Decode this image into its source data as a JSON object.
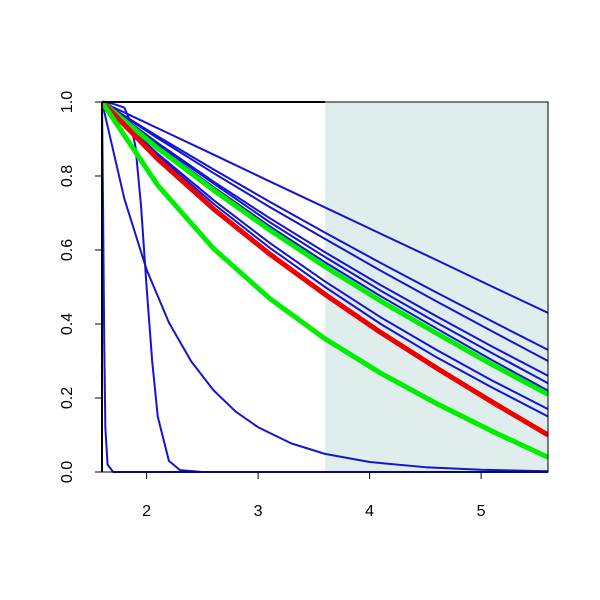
{
  "chart_data": {
    "type": "line",
    "xlim": [
      1.6,
      5.6
    ],
    "ylim": [
      0,
      1
    ],
    "xticks": [
      2,
      3,
      4,
      5
    ],
    "yticks": [
      {
        "value": 0,
        "label": "0.0"
      },
      {
        "value": 0.2,
        "label": "0.2"
      },
      {
        "value": 0.4,
        "label": "0.4"
      },
      {
        "value": 0.6,
        "label": "0.6"
      },
      {
        "value": 0.8,
        "label": "0.8"
      },
      {
        "value": 1,
        "label": "1.0"
      }
    ],
    "shade": {
      "xlim": [
        3.6,
        5.6
      ],
      "color": "#e0eded"
    },
    "series": [
      {
        "color": "#1414d2",
        "linewidth": 2,
        "x": [
          1.6,
          2.1,
          2.6,
          3.1,
          3.6,
          4.1,
          4.6,
          5.1,
          5.6
        ],
        "values": [
          1,
          0.929,
          0.858,
          0.786,
          0.715,
          0.644,
          0.573,
          0.501,
          0.43
        ]
      },
      {
        "color": "#1414d2",
        "linewidth": 2,
        "x": [
          1.6,
          2.1,
          2.6,
          3.1,
          3.6,
          4.1,
          4.6,
          5.1,
          5.6
        ],
        "values": [
          1,
          0.907,
          0.818,
          0.731,
          0.647,
          0.565,
          0.485,
          0.407,
          0.33
        ]
      },
      {
        "color": "#1414d2",
        "linewidth": 2,
        "x": [
          1.6,
          2.1,
          2.6,
          3.1,
          3.6,
          4.1,
          4.6,
          5.1,
          5.6
        ],
        "values": [
          1,
          0.902,
          0.808,
          0.717,
          0.63,
          0.544,
          0.461,
          0.38,
          0.3
        ]
      },
      {
        "color": "#1414d2",
        "linewidth": 2,
        "x": [
          1.6,
          2.1,
          2.6,
          3.1,
          3.6,
          4.1,
          4.6,
          5.1,
          5.6
        ],
        "values": [
          1,
          0.889,
          0.785,
          0.687,
          0.594,
          0.505,
          0.421,
          0.339,
          0.26
        ]
      },
      {
        "color": "#1414d2",
        "linewidth": 2,
        "x": [
          1.6,
          2.1,
          2.6,
          3.1,
          3.6,
          4.1,
          4.6,
          5.1,
          5.6
        ],
        "values": [
          1,
          0.885,
          0.78,
          0.676,
          0.581,
          0.49,
          0.404,
          0.321,
          0.24
        ]
      },
      {
        "color": "#1414d2",
        "linewidth": 2,
        "x": [
          1.6,
          2.1,
          2.6,
          3.1,
          3.6,
          4.1,
          4.6,
          5.1,
          5.6
        ],
        "values": [
          1,
          0.88,
          0.77,
          0.665,
          0.567,
          0.475,
          0.388,
          0.302,
          0.22
        ]
      },
      {
        "color": "#1414d2",
        "linewidth": 2,
        "x": [
          1.6,
          2.1,
          2.6,
          3.1,
          3.6,
          4.1,
          4.6,
          5.1,
          5.6
        ],
        "values": [
          1,
          0.86,
          0.735,
          0.62,
          0.515,
          0.418,
          0.33,
          0.247,
          0.17
        ]
      },
      {
        "color": "#1414d2",
        "linewidth": 2,
        "x": [
          1.6,
          2.1,
          2.6,
          3.1,
          3.6,
          4.1,
          4.6,
          5.1,
          5.6
        ],
        "values": [
          1,
          0.855,
          0.725,
          0.607,
          0.5,
          0.4,
          0.31,
          0.228,
          0.15
        ]
      },
      {
        "color": "#1414d2",
        "linewidth": 2,
        "x": [
          1.6,
          1.8,
          2.0,
          2.2,
          2.4,
          2.6,
          2.8,
          3.0,
          3.3,
          3.6,
          4.0,
          4.5,
          5.0,
          5.6
        ],
        "values": [
          1,
          0.739,
          0.547,
          0.404,
          0.299,
          0.221,
          0.163,
          0.121,
          0.077,
          0.049,
          0.027,
          0.013,
          0.006,
          0.002
        ]
      },
      {
        "color": "#1414d2",
        "linewidth": 2,
        "x": [
          1.6,
          1.7,
          1.8,
          1.85,
          1.9,
          1.95,
          2.0,
          2.05,
          2.1,
          2.2,
          2.3,
          2.5,
          5.6
        ],
        "values": [
          1,
          0.995,
          0.985,
          0.95,
          0.88,
          0.72,
          0.5,
          0.3,
          0.15,
          0.03,
          0.005,
          0,
          0
        ]
      },
      {
        "color": "#1414d2",
        "linewidth": 2,
        "x": [
          1.6,
          1.61,
          1.62,
          1.63,
          1.65,
          1.7,
          5.6
        ],
        "values": [
          1,
          0.7,
          0.35,
          0.12,
          0.02,
          0,
          0
        ]
      },
      {
        "color": "#00ee00",
        "linewidth": 5,
        "x": [
          1.6,
          2.1,
          2.6,
          3.1,
          3.6,
          4.1,
          4.6,
          5.1,
          5.6
        ],
        "values": [
          1,
          0.875,
          0.762,
          0.655,
          0.555,
          0.462,
          0.375,
          0.29,
          0.21
        ]
      },
      {
        "color": "#ee0000",
        "linewidth": 5,
        "x": [
          1.6,
          2.1,
          2.6,
          3.1,
          3.6,
          4.1,
          4.6,
          5.1,
          5.6
        ],
        "values": [
          1,
          0.846,
          0.711,
          0.59,
          0.48,
          0.377,
          0.281,
          0.189,
          0.1
        ]
      },
      {
        "color": "#00ee00",
        "linewidth": 5,
        "x": [
          1.6,
          2.1,
          2.6,
          3.1,
          3.6,
          4.1,
          4.6,
          5.1,
          5.6
        ],
        "values": [
          1,
          0.775,
          0.604,
          0.47,
          0.36,
          0.267,
          0.185,
          0.11,
          0.04
        ]
      }
    ]
  }
}
